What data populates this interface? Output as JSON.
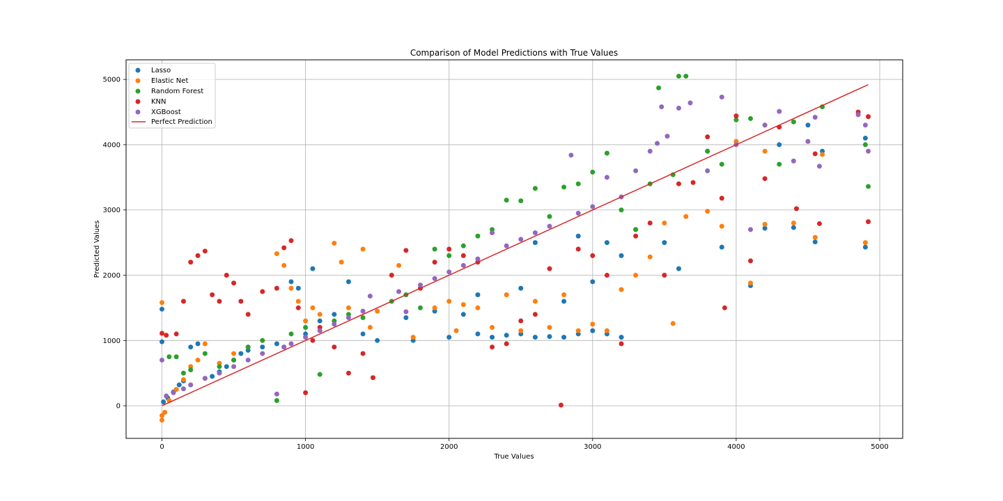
{
  "chart_data": {
    "type": "scatter",
    "title": "Comparison of Model Predictions with True Values",
    "xlabel": "True Values",
    "ylabel": "Predicted Values",
    "xlim": [
      -250,
      5160
    ],
    "ylim": [
      -500,
      5300
    ],
    "x_ticks": [
      0,
      1000,
      2000,
      3000,
      4000,
      5000
    ],
    "y_ticks": [
      0,
      1000,
      2000,
      3000,
      4000,
      5000
    ],
    "x_tick_labels": [
      "0",
      "1000",
      "2000",
      "3000",
      "4000",
      "5000"
    ],
    "y_tick_labels": [
      "0",
      "1000",
      "2000",
      "3000",
      "4000",
      "5000"
    ],
    "grid": true,
    "legend_position": "top-left",
    "series": [
      {
        "name": "Lasso",
        "color": "#1f77b4",
        "points": [
          [
            0,
            1480
          ],
          [
            0,
            980
          ],
          [
            10,
            60
          ],
          [
            40,
            120
          ],
          [
            80,
            210
          ],
          [
            120,
            320
          ],
          [
            150,
            380
          ],
          [
            200,
            900
          ],
          [
            250,
            950
          ],
          [
            300,
            420
          ],
          [
            350,
            450
          ],
          [
            400,
            520
          ],
          [
            450,
            600
          ],
          [
            500,
            700
          ],
          [
            550,
            800
          ],
          [
            600,
            850
          ],
          [
            700,
            900
          ],
          [
            800,
            950
          ],
          [
            900,
            1900
          ],
          [
            950,
            1800
          ],
          [
            1000,
            1100
          ],
          [
            1050,
            2100
          ],
          [
            1100,
            1300
          ],
          [
            1200,
            1400
          ],
          [
            1300,
            1900
          ],
          [
            1400,
            1100
          ],
          [
            1500,
            1000
          ],
          [
            1700,
            1350
          ],
          [
            1750,
            1000
          ],
          [
            1900,
            1450
          ],
          [
            2000,
            1050
          ],
          [
            2100,
            1400
          ],
          [
            2200,
            1100
          ],
          [
            2300,
            1050
          ],
          [
            2400,
            1080
          ],
          [
            2500,
            1100
          ],
          [
            2600,
            1050
          ],
          [
            2700,
            1060
          ],
          [
            2800,
            1050
          ],
          [
            2900,
            1100
          ],
          [
            3000,
            1150
          ],
          [
            3100,
            1100
          ],
          [
            3200,
            1050
          ],
          [
            2200,
            1700
          ],
          [
            2500,
            1800
          ],
          [
            2800,
            1600
          ],
          [
            3000,
            1900
          ],
          [
            3200,
            2300
          ],
          [
            3300,
            2700
          ],
          [
            3500,
            2500
          ],
          [
            3600,
            2100
          ],
          [
            3900,
            2430
          ],
          [
            4100,
            1840
          ],
          [
            4200,
            2720
          ],
          [
            4400,
            2730
          ],
          [
            4550,
            2510
          ],
          [
            4900,
            4100
          ],
          [
            4900,
            2430
          ],
          [
            3800,
            3900
          ],
          [
            4000,
            4050
          ],
          [
            4300,
            4000
          ],
          [
            4500,
            4300
          ],
          [
            4600,
            3900
          ],
          [
            2600,
            2500
          ],
          [
            2900,
            2600
          ],
          [
            3100,
            2500
          ]
        ]
      },
      {
        "name": "Elastic Net",
        "color": "#ff7f0e",
        "points": [
          [
            0,
            1580
          ],
          [
            0,
            -220
          ],
          [
            0,
            -150
          ],
          [
            20,
            -100
          ],
          [
            50,
            80
          ],
          [
            100,
            250
          ],
          [
            150,
            400
          ],
          [
            200,
            600
          ],
          [
            250,
            700
          ],
          [
            300,
            950
          ],
          [
            400,
            650
          ],
          [
            500,
            800
          ],
          [
            600,
            900
          ],
          [
            700,
            1000
          ],
          [
            800,
            2330
          ],
          [
            850,
            2150
          ],
          [
            900,
            1800
          ],
          [
            950,
            1600
          ],
          [
            1000,
            1300
          ],
          [
            1050,
            1500
          ],
          [
            1100,
            1400
          ],
          [
            1200,
            2490
          ],
          [
            1250,
            2200
          ],
          [
            1300,
            1500
          ],
          [
            1400,
            2400
          ],
          [
            1450,
            1200
          ],
          [
            1500,
            1450
          ],
          [
            1650,
            2150
          ],
          [
            1750,
            1050
          ],
          [
            1900,
            1500
          ],
          [
            2000,
            1600
          ],
          [
            2050,
            1150
          ],
          [
            2100,
            1550
          ],
          [
            2200,
            1500
          ],
          [
            2300,
            1200
          ],
          [
            2400,
            1700
          ],
          [
            2500,
            1150
          ],
          [
            2600,
            1600
          ],
          [
            2700,
            1200
          ],
          [
            2800,
            1700
          ],
          [
            2900,
            1150
          ],
          [
            3000,
            1250
          ],
          [
            3100,
            1150
          ],
          [
            3200,
            1780
          ],
          [
            3300,
            2000
          ],
          [
            3400,
            2280
          ],
          [
            3500,
            2800
          ],
          [
            3560,
            1260
          ],
          [
            3650,
            2900
          ],
          [
            3800,
            2980
          ],
          [
            3900,
            2750
          ],
          [
            4000,
            4050
          ],
          [
            4100,
            1880
          ],
          [
            4200,
            2780
          ],
          [
            4400,
            2800
          ],
          [
            4550,
            2580
          ],
          [
            4900,
            2500
          ],
          [
            4200,
            3900
          ],
          [
            4600,
            3850
          ]
        ]
      },
      {
        "name": "Random Forest",
        "color": "#2ca02c",
        "points": [
          [
            50,
            750
          ],
          [
            100,
            750
          ],
          [
            150,
            500
          ],
          [
            200,
            550
          ],
          [
            300,
            800
          ],
          [
            400,
            600
          ],
          [
            500,
            700
          ],
          [
            600,
            900
          ],
          [
            700,
            1000
          ],
          [
            800,
            80
          ],
          [
            850,
            900
          ],
          [
            900,
            1100
          ],
          [
            1000,
            1200
          ],
          [
            1100,
            480
          ],
          [
            1200,
            1300
          ],
          [
            1300,
            1400
          ],
          [
            1400,
            1350
          ],
          [
            1600,
            1600
          ],
          [
            1700,
            1700
          ],
          [
            1800,
            1500
          ],
          [
            1900,
            2400
          ],
          [
            2000,
            2300
          ],
          [
            2100,
            2450
          ],
          [
            2200,
            2600
          ],
          [
            2300,
            2700
          ],
          [
            2400,
            3150
          ],
          [
            2500,
            3140
          ],
          [
            2600,
            3330
          ],
          [
            2700,
            2900
          ],
          [
            2800,
            3350
          ],
          [
            2900,
            3400
          ],
          [
            3000,
            3580
          ],
          [
            3100,
            3870
          ],
          [
            3200,
            3000
          ],
          [
            3300,
            2700
          ],
          [
            3400,
            3400
          ],
          [
            3460,
            4870
          ],
          [
            3560,
            3540
          ],
          [
            3600,
            5050
          ],
          [
            3650,
            5050
          ],
          [
            3800,
            3900
          ],
          [
            3900,
            3700
          ],
          [
            4000,
            4380
          ],
          [
            4100,
            4400
          ],
          [
            4200,
            4300
          ],
          [
            4300,
            3700
          ],
          [
            4400,
            4350
          ],
          [
            4600,
            4580
          ],
          [
            4920,
            3360
          ],
          [
            4900,
            4000
          ]
        ]
      },
      {
        "name": "KNN",
        "color": "#d62728",
        "points": [
          [
            0,
            1110
          ],
          [
            30,
            1080
          ],
          [
            100,
            1100
          ],
          [
            150,
            1600
          ],
          [
            200,
            2200
          ],
          [
            250,
            2300
          ],
          [
            300,
            2370
          ],
          [
            350,
            1700
          ],
          [
            400,
            1600
          ],
          [
            450,
            2000
          ],
          [
            500,
            1880
          ],
          [
            550,
            1600
          ],
          [
            600,
            1400
          ],
          [
            700,
            1750
          ],
          [
            800,
            1800
          ],
          [
            850,
            2420
          ],
          [
            900,
            2530
          ],
          [
            950,
            1500
          ],
          [
            1000,
            200
          ],
          [
            1050,
            1000
          ],
          [
            1100,
            1200
          ],
          [
            1200,
            900
          ],
          [
            1300,
            500
          ],
          [
            1400,
            800
          ],
          [
            1470,
            430
          ],
          [
            1600,
            2000
          ],
          [
            1700,
            2380
          ],
          [
            1800,
            1800
          ],
          [
            1900,
            2200
          ],
          [
            2000,
            2400
          ],
          [
            2100,
            2300
          ],
          [
            2200,
            2200
          ],
          [
            2300,
            900
          ],
          [
            2400,
            950
          ],
          [
            2500,
            1300
          ],
          [
            2600,
            1400
          ],
          [
            2700,
            2100
          ],
          [
            2780,
            10
          ],
          [
            2900,
            2400
          ],
          [
            3000,
            2300
          ],
          [
            3100,
            2000
          ],
          [
            3200,
            950
          ],
          [
            3300,
            2600
          ],
          [
            3400,
            2800
          ],
          [
            3500,
            2000
          ],
          [
            3600,
            3400
          ],
          [
            3700,
            3420
          ],
          [
            3800,
            4120
          ],
          [
            3900,
            3180
          ],
          [
            3920,
            1500
          ],
          [
            4000,
            4440
          ],
          [
            4100,
            2220
          ],
          [
            4200,
            3480
          ],
          [
            4300,
            4270
          ],
          [
            4420,
            3020
          ],
          [
            4550,
            3860
          ],
          [
            4580,
            2790
          ],
          [
            4850,
            4500
          ],
          [
            4920,
            4430
          ],
          [
            4920,
            2820
          ]
        ]
      },
      {
        "name": "XGBoost",
        "color": "#9467bd",
        "points": [
          [
            0,
            700
          ],
          [
            30,
            150
          ],
          [
            80,
            200
          ],
          [
            150,
            260
          ],
          [
            200,
            320
          ],
          [
            300,
            420
          ],
          [
            400,
            500
          ],
          [
            500,
            600
          ],
          [
            600,
            700
          ],
          [
            700,
            800
          ],
          [
            800,
            180
          ],
          [
            850,
            900
          ],
          [
            900,
            950
          ],
          [
            1000,
            1050
          ],
          [
            1100,
            1150
          ],
          [
            1200,
            1250
          ],
          [
            1300,
            1350
          ],
          [
            1400,
            1450
          ],
          [
            1450,
            1680
          ],
          [
            1650,
            1750
          ],
          [
            1700,
            1440
          ],
          [
            1800,
            1850
          ],
          [
            1900,
            1950
          ],
          [
            2000,
            2050
          ],
          [
            2100,
            2150
          ],
          [
            2200,
            2250
          ],
          [
            2300,
            2650
          ],
          [
            2400,
            2450
          ],
          [
            2500,
            2550
          ],
          [
            2600,
            2650
          ],
          [
            2700,
            2750
          ],
          [
            2850,
            3840
          ],
          [
            2900,
            2950
          ],
          [
            3000,
            3050
          ],
          [
            3100,
            3500
          ],
          [
            3200,
            3200
          ],
          [
            3300,
            3600
          ],
          [
            3400,
            3900
          ],
          [
            3450,
            4020
          ],
          [
            3480,
            4580
          ],
          [
            3520,
            4130
          ],
          [
            3600,
            4560
          ],
          [
            3680,
            4640
          ],
          [
            3800,
            3600
          ],
          [
            3900,
            4730
          ],
          [
            4000,
            4000
          ],
          [
            4100,
            2700
          ],
          [
            4200,
            4300
          ],
          [
            4300,
            4510
          ],
          [
            4400,
            3750
          ],
          [
            4500,
            4050
          ],
          [
            4550,
            4420
          ],
          [
            4580,
            3670
          ],
          [
            4850,
            4460
          ],
          [
            4920,
            3900
          ],
          [
            4900,
            4300
          ]
        ]
      }
    ],
    "reference_line": {
      "name": "Perfect Prediction",
      "color": "#d62728",
      "x": [
        0,
        4920
      ],
      "y": [
        0,
        4920
      ]
    }
  }
}
